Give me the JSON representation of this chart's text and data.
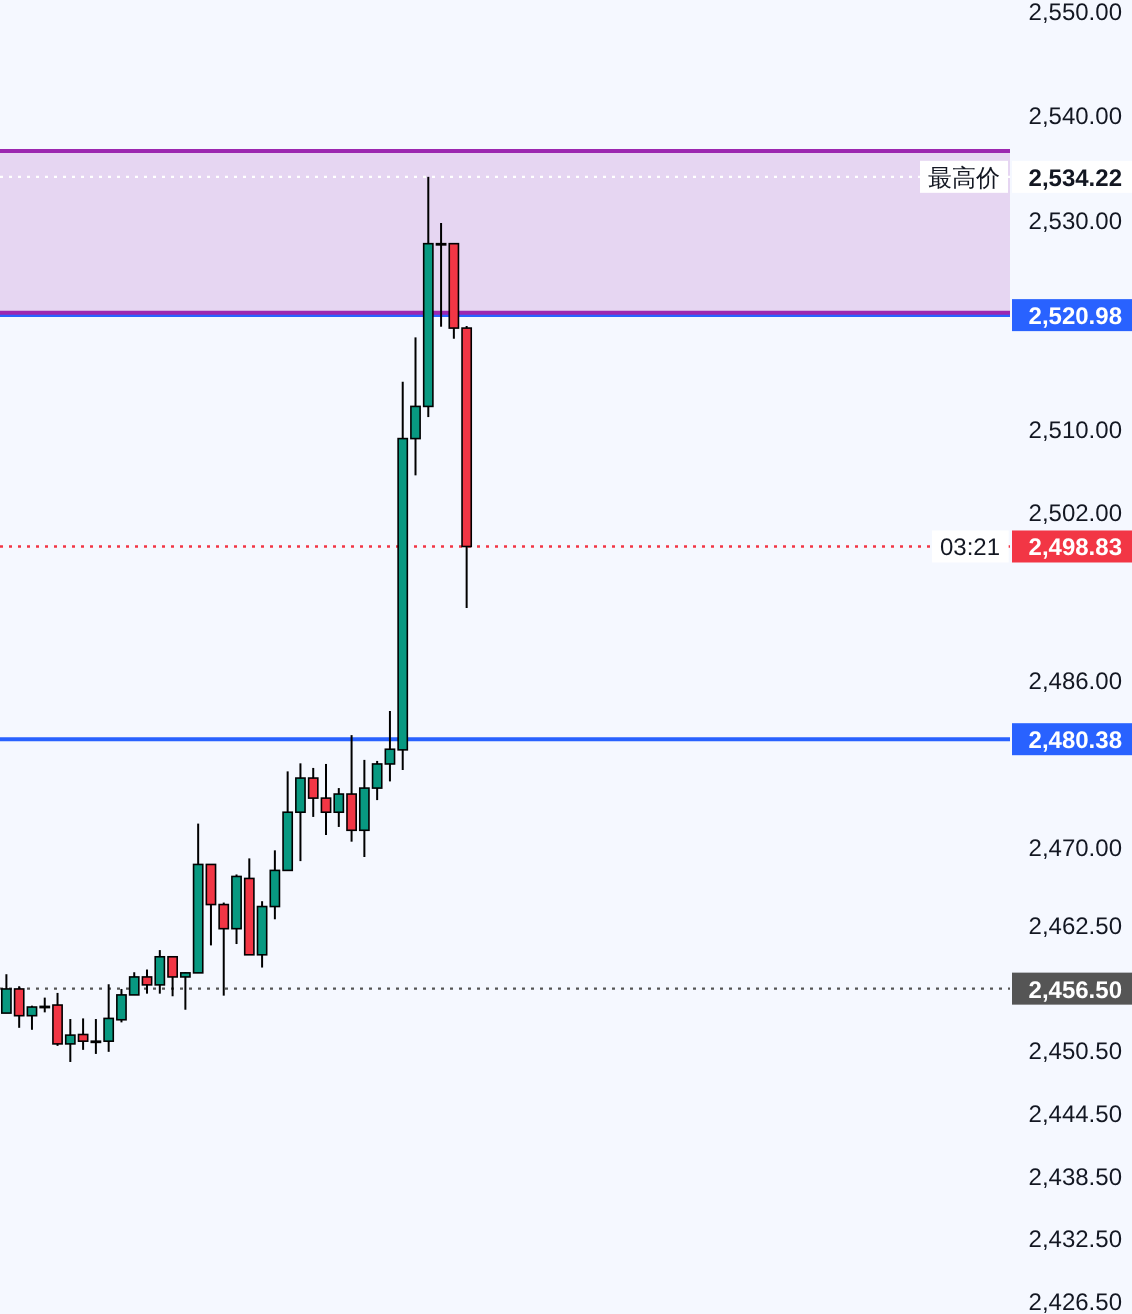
{
  "chart_data": {
    "type": "candlestick",
    "categories": [
      null,
      null,
      null,
      null,
      null,
      null,
      null,
      null,
      null,
      null,
      null,
      null,
      null,
      null,
      null,
      null,
      null,
      null,
      null,
      null,
      null,
      null,
      null,
      null,
      null,
      null,
      null,
      null,
      null,
      null,
      null,
      null,
      null,
      null,
      null,
      null,
      null,
      null,
      null,
      null,
      null,
      null,
      null,
      null,
      null,
      null,
      null,
      null,
      null,
      null,
      null,
      null,
      null,
      null,
      null,
      null,
      null,
      null,
      null,
      null,
      null,
      null,
      null,
      null,
      null,
      null,
      null,
      null,
      null,
      null,
      null,
      null,
      null,
      null,
      null,
      null,
      null,
      null,
      null
    ],
    "ohlc": [
      [
        2454.16,
        2457.88,
        2454.16,
        2456.47
      ],
      [
        2456.47,
        2456.73,
        2452.75,
        2453.91
      ],
      [
        2453.91,
        2454.87,
        2452.56,
        2454.74
      ],
      [
        2454.8,
        2455.64,
        2454.23,
        2454.8
      ],
      [
        2454.93,
        2456.09,
        2451.02,
        2451.21
      ],
      [
        2451.21,
        2453.59,
        2449.48,
        2452.05
      ],
      [
        2452.11,
        2453.65,
        2450.64,
        2451.47
      ],
      [
        2451.47,
        2453.59,
        2450.25,
        2451.47
      ],
      [
        2451.47,
        2456.92,
        2450.45,
        2453.65
      ],
      [
        2453.52,
        2456.47,
        2453.27,
        2455.9
      ],
      [
        2455.9,
        2458.07,
        2455.9,
        2457.62
      ],
      [
        2457.62,
        2458.33,
        2456.02,
        2456.86
      ],
      [
        2456.86,
        2460.19,
        2456.02,
        2459.55
      ],
      [
        2459.55,
        2459.55,
        2455.77,
        2457.62
      ],
      [
        2457.62,
        2458.07,
        2454.48,
        2458.01
      ],
      [
        2458.01,
        2472.3,
        2458.01,
        2468.39
      ],
      [
        2468.39,
        2468.39,
        2460.64,
        2464.55
      ],
      [
        2464.55,
        2464.74,
        2455.83,
        2462.24
      ],
      [
        2462.24,
        2467.43,
        2460.77,
        2467.24
      ],
      [
        2467.05,
        2468.97,
        2459.74,
        2459.74
      ],
      [
        2459.74,
        2464.87,
        2458.52,
        2464.36
      ],
      [
        2464.36,
        2469.74,
        2463.14,
        2467.82
      ],
      [
        2467.82,
        2477.3,
        2467.82,
        2473.39
      ],
      [
        2473.39,
        2478.07,
        2468.71,
        2476.66
      ],
      [
        2476.66,
        2477.63,
        2472.94,
        2474.74
      ],
      [
        2474.74,
        2478.01,
        2471.21,
        2473.39
      ],
      [
        2473.39,
        2475.7,
        2471.98,
        2475.13
      ],
      [
        2475.13,
        2480.77,
        2470.57,
        2471.66
      ],
      [
        2471.66,
        2478.4,
        2469.1,
        2475.7
      ],
      [
        2475.7,
        2478.3,
        2474.55,
        2478.01
      ],
      [
        2478.01,
        2483.08,
        2476.34,
        2479.42
      ],
      [
        2479.36,
        2514.61,
        2477.43,
        2509.16
      ],
      [
        2509.16,
        2518.85,
        2505.64,
        2512.24
      ],
      [
        2512.24,
        2534.22,
        2511.22,
        2527.82
      ],
      [
        2527.82,
        2529.8,
        2519.87,
        2527.82
      ],
      [
        2527.82,
        2527.82,
        2518.72,
        2519.74
      ],
      [
        2519.74,
        2519.93,
        2492.95,
        2498.83
      ],
      null,
      null,
      null,
      null,
      null,
      null,
      null,
      null,
      null,
      null,
      null,
      null,
      null,
      null,
      null,
      null,
      null,
      null,
      null,
      null,
      null,
      null,
      null,
      null,
      null,
      null,
      null,
      null,
      null,
      null,
      null,
      null,
      null,
      null,
      null,
      null,
      null,
      null,
      null,
      null,
      null,
      null
    ],
    "colors": [
      "#089981",
      "#f23645",
      "#089981",
      "#089981",
      "#f23645",
      "#089981",
      "#f23645",
      "#089981",
      "#089981",
      "#089981",
      "#089981",
      "#f23645",
      "#089981",
      "#f23645",
      "#089981",
      "#089981",
      "#f23645",
      "#f23645",
      "#089981",
      "#f23645",
      "#089981",
      "#089981",
      "#089981",
      "#089981",
      "#f23645",
      "#f23645",
      "#089981",
      "#f23645",
      "#089981",
      "#089981",
      "#089981",
      "#089981",
      "#089981",
      "#089981",
      "#089981",
      "#f23645",
      "#f23645",
      null,
      null,
      null,
      null,
      null,
      null,
      null,
      null,
      null,
      null,
      null,
      null,
      null,
      null,
      null,
      null,
      null,
      null,
      null,
      null,
      null,
      null,
      null,
      null,
      null,
      null,
      null,
      null,
      null,
      null,
      null,
      null,
      null,
      null,
      null,
      null,
      null,
      null,
      null,
      null,
      null,
      null
    ],
    "ylim": [
      2426.5,
      2550
    ],
    "yticks": [
      {
        "value": 2550,
        "label": "2,550.00"
      },
      {
        "value": 2540,
        "label": "2,540.00"
      },
      {
        "value": 2530,
        "label": "2,530.00"
      },
      {
        "value": 2510,
        "label": "2,510.00"
      },
      {
        "value": 2502,
        "label": "2,502.00"
      },
      {
        "value": 2486,
        "label": "2,486.00"
      },
      {
        "value": 2470,
        "label": "2,470.00"
      },
      {
        "value": 2462.5,
        "label": "2,462.50"
      },
      {
        "value": 2450.5,
        "label": "2,450.50"
      },
      {
        "value": 2444.5,
        "label": "2,444.50"
      },
      {
        "value": 2438.5,
        "label": "2,438.50"
      },
      {
        "value": 2432.5,
        "label": "2,432.50"
      },
      {
        "value": 2426.5,
        "label": "2,426.50"
      }
    ],
    "bands": [
      {
        "axis": "y",
        "from": 2520.98,
        "to": 2536.7,
        "color": "#9c27b0"
      }
    ],
    "ref_lines": [
      {
        "axis": "y",
        "value": 2534.22,
        "label": "2,534.22",
        "color": "#ffffff",
        "line_style": "dotted"
      },
      {
        "axis": "y",
        "value": 2520.98,
        "label": "2,520.98",
        "color": "#2962ff",
        "line_style": "solid"
      },
      {
        "axis": "y",
        "value": 2498.83,
        "label": "2,498.83",
        "color": "#f23645",
        "line_style": "dotted"
      },
      {
        "axis": "y",
        "value": 2480.38,
        "label": "2,480.38",
        "color": "#2962ff",
        "line_style": "solid"
      },
      {
        "axis": "y",
        "value": 2456.5,
        "label": "2,456.50",
        "color": "#555555",
        "line_style": "dotted"
      },
      {
        "axis": "y",
        "value": 2536.7,
        "color": "#9c27b0",
        "line_style": "solid"
      },
      {
        "axis": "y",
        "value": 2521.2,
        "color": "#9c27b0",
        "line_style": "solid"
      }
    ],
    "annotations": [
      {
        "text": "最高价",
        "y": 2534.22
      },
      {
        "text": "03:21",
        "y": 2498.83
      }
    ]
  }
}
